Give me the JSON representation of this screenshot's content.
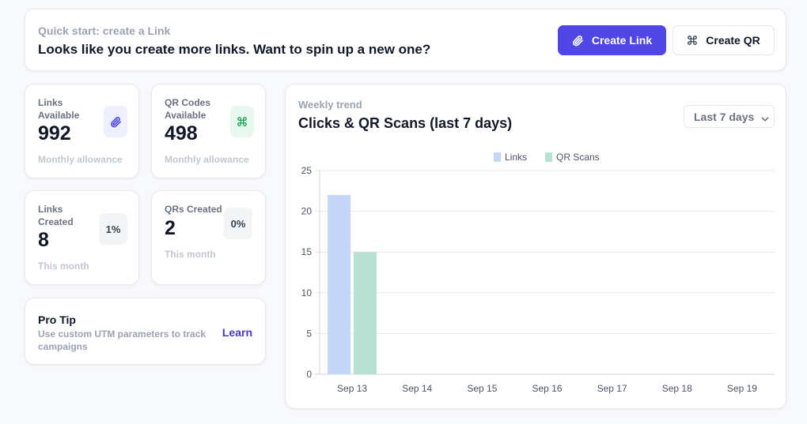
{
  "quick_start": {
    "eyebrow": "Quick start: create a Link",
    "headline": "Looks like you create more links. Want to spin up a new one?",
    "create_link_label": "Create Link",
    "create_qr_label": "Create QR",
    "link_icon": "paperclip-icon",
    "qr_icon": "qr-code-icon"
  },
  "stats": [
    {
      "label": "Links Available",
      "value": "992",
      "sub": "Monthly allowance",
      "icon": "paperclip-icon"
    },
    {
      "label": "QR Codes Available",
      "value": "498",
      "sub": "Monthly allowance",
      "icon": "qr-code-icon"
    },
    {
      "label": "Links Created",
      "value": "8",
      "sub": "This month",
      "percent": "1%"
    },
    {
      "label": "QRs Created",
      "value": "2",
      "sub": "This month",
      "percent": "0%"
    }
  ],
  "pro_tip": {
    "title": "Pro Tip",
    "body": "Use custom UTM parameters to track campaigns",
    "link_label": "Learn"
  },
  "trend": {
    "eyebrow": "Weekly trend",
    "title": "Clicks & QR Scans (last 7 days)",
    "range_selected": "Last 7 days"
  },
  "colors": {
    "accent": "#4f46e5",
    "links_series": "#c5d7f8",
    "qr_series": "#b7e2d3"
  },
  "chart_data": {
    "type": "bar",
    "categories": [
      "Sep 13",
      "Sep 14",
      "Sep 15",
      "Sep 16",
      "Sep 17",
      "Sep 18",
      "Sep 19"
    ],
    "series": [
      {
        "name": "Links",
        "values": [
          22,
          0,
          0,
          0,
          0,
          0,
          0
        ],
        "color": "#c5d7f8"
      },
      {
        "name": "QR Scans",
        "values": [
          15,
          0,
          0,
          0,
          0,
          0,
          0
        ],
        "color": "#b7e2d3"
      }
    ],
    "ylim": [
      0,
      25
    ],
    "yticks": [
      0,
      5,
      10,
      15,
      20,
      25
    ],
    "grid": true,
    "legend": "top-center"
  }
}
